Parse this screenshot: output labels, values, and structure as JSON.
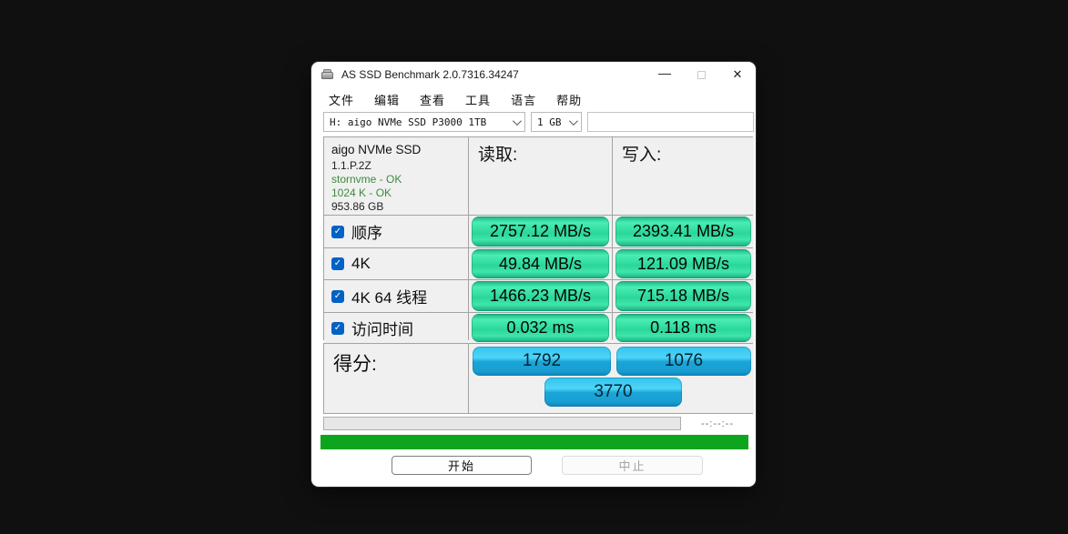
{
  "window": {
    "title": "AS SSD Benchmark 2.0.7316.34247",
    "controls": {
      "minimize": "—",
      "close": "✕"
    }
  },
  "menu": {
    "items": [
      "文件",
      "编辑",
      "查看",
      "工具",
      "语言",
      "帮助"
    ]
  },
  "toolbar": {
    "drive_select": "H: aigo NVMe SSD P3000 1TB",
    "size_select": "1 GB"
  },
  "info": {
    "drive_name": "aigo NVMe SSD",
    "firmware": "1.1.P.2Z",
    "driver_status": "stornvme - OK",
    "alignment_status": "1024 K - OK",
    "capacity": "953.86 GB"
  },
  "table": {
    "read_header": "读取:",
    "write_header": "写入:",
    "check_glyph": "✓",
    "rows": [
      {
        "label": "顺序",
        "checked": true,
        "read": "2757.12 MB/s",
        "write": "2393.41 MB/s"
      },
      {
        "label": "4K",
        "checked": true,
        "read": "49.84 MB/s",
        "write": "121.09 MB/s"
      },
      {
        "label": "4K 64 线程",
        "checked": true,
        "read": "1466.23 MB/s",
        "write": "715.18 MB/s"
      },
      {
        "label": "访问时间",
        "checked": true,
        "read": "0.032 ms",
        "write": "0.118 ms"
      }
    ]
  },
  "score": {
    "label": "得分:",
    "read": "1792",
    "write": "1076",
    "total": "3770"
  },
  "progress": {
    "time": "--:--:--"
  },
  "actions": {
    "start": "开始",
    "abort": "中止"
  },
  "colors": {
    "accent_checkbox": "#0062c5",
    "pill_green": "#2fd89d",
    "pill_blue": "#29b6e5",
    "status_green": "#0ea51e"
  }
}
